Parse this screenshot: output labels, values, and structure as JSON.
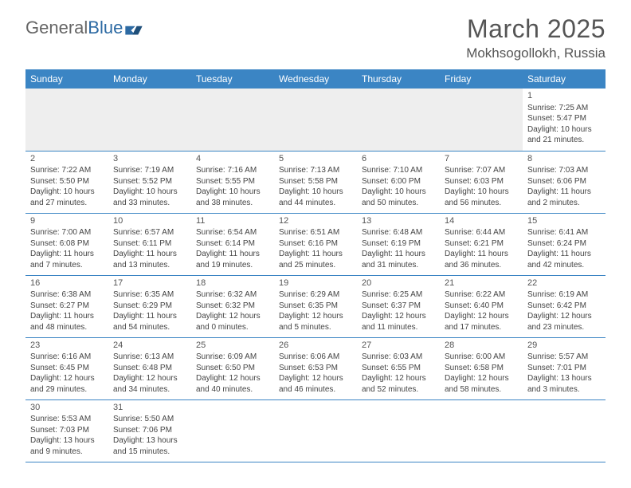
{
  "logo": {
    "part1": "General",
    "part2": "Blue"
  },
  "title": "March 2025",
  "location": "Mokhsogollokh, Russia",
  "colors": {
    "header_bg": "#3b85c4",
    "header_text": "#ffffff",
    "row_border": "#3b85c4",
    "empty_bg": "#eeeeee",
    "text": "#444444",
    "title_text": "#555555"
  },
  "weekdays": [
    "Sunday",
    "Monday",
    "Tuesday",
    "Wednesday",
    "Thursday",
    "Friday",
    "Saturday"
  ],
  "weeks": [
    [
      null,
      null,
      null,
      null,
      null,
      null,
      {
        "n": "1",
        "sr": "Sunrise: 7:25 AM",
        "ss": "Sunset: 5:47 PM",
        "d1": "Daylight: 10 hours",
        "d2": "and 21 minutes."
      }
    ],
    [
      {
        "n": "2",
        "sr": "Sunrise: 7:22 AM",
        "ss": "Sunset: 5:50 PM",
        "d1": "Daylight: 10 hours",
        "d2": "and 27 minutes."
      },
      {
        "n": "3",
        "sr": "Sunrise: 7:19 AM",
        "ss": "Sunset: 5:52 PM",
        "d1": "Daylight: 10 hours",
        "d2": "and 33 minutes."
      },
      {
        "n": "4",
        "sr": "Sunrise: 7:16 AM",
        "ss": "Sunset: 5:55 PM",
        "d1": "Daylight: 10 hours",
        "d2": "and 38 minutes."
      },
      {
        "n": "5",
        "sr": "Sunrise: 7:13 AM",
        "ss": "Sunset: 5:58 PM",
        "d1": "Daylight: 10 hours",
        "d2": "and 44 minutes."
      },
      {
        "n": "6",
        "sr": "Sunrise: 7:10 AM",
        "ss": "Sunset: 6:00 PM",
        "d1": "Daylight: 10 hours",
        "d2": "and 50 minutes."
      },
      {
        "n": "7",
        "sr": "Sunrise: 7:07 AM",
        "ss": "Sunset: 6:03 PM",
        "d1": "Daylight: 10 hours",
        "d2": "and 56 minutes."
      },
      {
        "n": "8",
        "sr": "Sunrise: 7:03 AM",
        "ss": "Sunset: 6:06 PM",
        "d1": "Daylight: 11 hours",
        "d2": "and 2 minutes."
      }
    ],
    [
      {
        "n": "9",
        "sr": "Sunrise: 7:00 AM",
        "ss": "Sunset: 6:08 PM",
        "d1": "Daylight: 11 hours",
        "d2": "and 7 minutes."
      },
      {
        "n": "10",
        "sr": "Sunrise: 6:57 AM",
        "ss": "Sunset: 6:11 PM",
        "d1": "Daylight: 11 hours",
        "d2": "and 13 minutes."
      },
      {
        "n": "11",
        "sr": "Sunrise: 6:54 AM",
        "ss": "Sunset: 6:14 PM",
        "d1": "Daylight: 11 hours",
        "d2": "and 19 minutes."
      },
      {
        "n": "12",
        "sr": "Sunrise: 6:51 AM",
        "ss": "Sunset: 6:16 PM",
        "d1": "Daylight: 11 hours",
        "d2": "and 25 minutes."
      },
      {
        "n": "13",
        "sr": "Sunrise: 6:48 AM",
        "ss": "Sunset: 6:19 PM",
        "d1": "Daylight: 11 hours",
        "d2": "and 31 minutes."
      },
      {
        "n": "14",
        "sr": "Sunrise: 6:44 AM",
        "ss": "Sunset: 6:21 PM",
        "d1": "Daylight: 11 hours",
        "d2": "and 36 minutes."
      },
      {
        "n": "15",
        "sr": "Sunrise: 6:41 AM",
        "ss": "Sunset: 6:24 PM",
        "d1": "Daylight: 11 hours",
        "d2": "and 42 minutes."
      }
    ],
    [
      {
        "n": "16",
        "sr": "Sunrise: 6:38 AM",
        "ss": "Sunset: 6:27 PM",
        "d1": "Daylight: 11 hours",
        "d2": "and 48 minutes."
      },
      {
        "n": "17",
        "sr": "Sunrise: 6:35 AM",
        "ss": "Sunset: 6:29 PM",
        "d1": "Daylight: 11 hours",
        "d2": "and 54 minutes."
      },
      {
        "n": "18",
        "sr": "Sunrise: 6:32 AM",
        "ss": "Sunset: 6:32 PM",
        "d1": "Daylight: 12 hours",
        "d2": "and 0 minutes."
      },
      {
        "n": "19",
        "sr": "Sunrise: 6:29 AM",
        "ss": "Sunset: 6:35 PM",
        "d1": "Daylight: 12 hours",
        "d2": "and 5 minutes."
      },
      {
        "n": "20",
        "sr": "Sunrise: 6:25 AM",
        "ss": "Sunset: 6:37 PM",
        "d1": "Daylight: 12 hours",
        "d2": "and 11 minutes."
      },
      {
        "n": "21",
        "sr": "Sunrise: 6:22 AM",
        "ss": "Sunset: 6:40 PM",
        "d1": "Daylight: 12 hours",
        "d2": "and 17 minutes."
      },
      {
        "n": "22",
        "sr": "Sunrise: 6:19 AM",
        "ss": "Sunset: 6:42 PM",
        "d1": "Daylight: 12 hours",
        "d2": "and 23 minutes."
      }
    ],
    [
      {
        "n": "23",
        "sr": "Sunrise: 6:16 AM",
        "ss": "Sunset: 6:45 PM",
        "d1": "Daylight: 12 hours",
        "d2": "and 29 minutes."
      },
      {
        "n": "24",
        "sr": "Sunrise: 6:13 AM",
        "ss": "Sunset: 6:48 PM",
        "d1": "Daylight: 12 hours",
        "d2": "and 34 minutes."
      },
      {
        "n": "25",
        "sr": "Sunrise: 6:09 AM",
        "ss": "Sunset: 6:50 PM",
        "d1": "Daylight: 12 hours",
        "d2": "and 40 minutes."
      },
      {
        "n": "26",
        "sr": "Sunrise: 6:06 AM",
        "ss": "Sunset: 6:53 PM",
        "d1": "Daylight: 12 hours",
        "d2": "and 46 minutes."
      },
      {
        "n": "27",
        "sr": "Sunrise: 6:03 AM",
        "ss": "Sunset: 6:55 PM",
        "d1": "Daylight: 12 hours",
        "d2": "and 52 minutes."
      },
      {
        "n": "28",
        "sr": "Sunrise: 6:00 AM",
        "ss": "Sunset: 6:58 PM",
        "d1": "Daylight: 12 hours",
        "d2": "and 58 minutes."
      },
      {
        "n": "29",
        "sr": "Sunrise: 5:57 AM",
        "ss": "Sunset: 7:01 PM",
        "d1": "Daylight: 13 hours",
        "d2": "and 3 minutes."
      }
    ],
    [
      {
        "n": "30",
        "sr": "Sunrise: 5:53 AM",
        "ss": "Sunset: 7:03 PM",
        "d1": "Daylight: 13 hours",
        "d2": "and 9 minutes."
      },
      {
        "n": "31",
        "sr": "Sunrise: 5:50 AM",
        "ss": "Sunset: 7:06 PM",
        "d1": "Daylight: 13 hours",
        "d2": "and 15 minutes."
      },
      null,
      null,
      null,
      null,
      null
    ]
  ]
}
